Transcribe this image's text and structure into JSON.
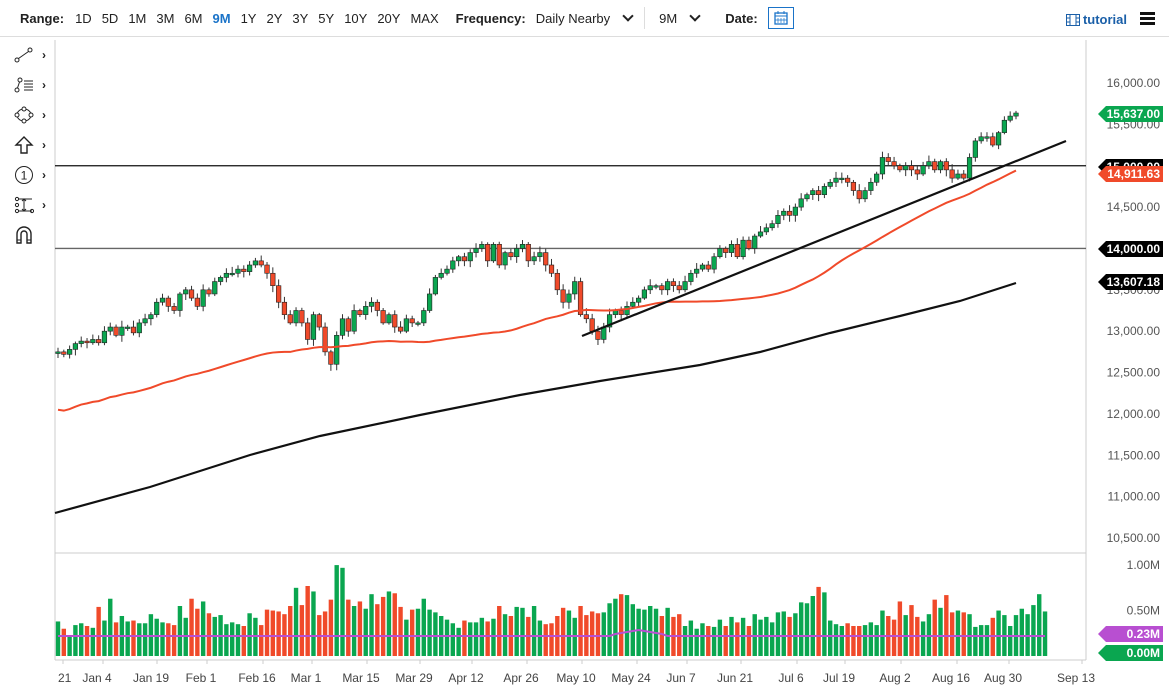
{
  "toolbar": {
    "range_label": "Range:",
    "ranges": [
      "1D",
      "5D",
      "1M",
      "3M",
      "6M",
      "9M",
      "1Y",
      "2Y",
      "3Y",
      "5Y",
      "10Y",
      "20Y",
      "MAX"
    ],
    "active_range": "9M",
    "frequency_label": "Frequency:",
    "frequency_value": "Daily Nearby",
    "period_value": "9M",
    "date_label": "Date:",
    "tutorial_label": "tutorial"
  },
  "drawing_tools": [
    {
      "name": "trendline-tool-icon"
    },
    {
      "name": "fibonacci-tool-icon"
    },
    {
      "name": "shapes-tool-icon"
    },
    {
      "name": "arrow-tool-icon"
    },
    {
      "name": "annotation-tool-icon"
    },
    {
      "name": "measure-tool-icon"
    },
    {
      "name": "magnet-tool-icon"
    }
  ],
  "colors": {
    "up": "#0aa650",
    "down": "#f04a2a",
    "ma50": "#f04a2a",
    "ma200": "#111111",
    "vol_avg": "#b84fd1",
    "active": "#1a73c8"
  },
  "chart_data": {
    "type": "candlestick",
    "title": "",
    "ylabel": "",
    "xlabel": "",
    "ylim": [
      10300,
      16300
    ],
    "y_ticks": [
      "16,000.00",
      "15,500.00",
      "15,000.00",
      "14,500.00",
      "14,000.00",
      "13,500.00",
      "13,000.00",
      "12,500.00",
      "12,000.00",
      "11,500.00",
      "11,000.00",
      "10,500.00"
    ],
    "x_ticks": [
      "21",
      "Jan 4",
      "Jan 19",
      "Feb 1",
      "Feb 16",
      "Mar 1",
      "Mar 15",
      "Mar 29",
      "Apr 12",
      "Apr 26",
      "May 10",
      "May 24",
      "Jun 7",
      "Jun 21",
      "Jul 6",
      "Jul 19",
      "Aug 2",
      "Aug 16",
      "Aug 30",
      "Sep 13"
    ],
    "price_tags": [
      {
        "label": "15,637.00",
        "value": 15637,
        "color": "#0aa650"
      },
      {
        "label": "15,000.00",
        "value": 15000,
        "color": "#000000"
      },
      {
        "label": "14,911.63",
        "value": 14911.63,
        "color": "#f04a2a"
      },
      {
        "label": "14,000.00",
        "value": 14000,
        "color": "#000000"
      },
      {
        "label": "13,607.18",
        "value": 13607.18,
        "color": "#000000"
      }
    ],
    "horizontal_lines": [
      15000,
      14000
    ],
    "trendline": {
      "from": {
        "date": "May 12",
        "value": 12950
      },
      "to": {
        "date": "Sep 10",
        "value": 15330
      }
    },
    "closes": [
      12750,
      12720,
      12780,
      12850,
      12880,
      12860,
      12900,
      12860,
      13000,
      13050,
      12950,
      13050,
      13050,
      12980,
      13100,
      13150,
      13200,
      13350,
      13400,
      13300,
      13250,
      13450,
      13500,
      13400,
      13300,
      13500,
      13450,
      13600,
      13650,
      13700,
      13700,
      13750,
      13720,
      13800,
      13850,
      13800,
      13700,
      13550,
      13350,
      13200,
      13100,
      13250,
      13100,
      12900,
      13200,
      13050,
      12750,
      12600,
      12950,
      13150,
      13000,
      13250,
      13200,
      13300,
      13350,
      13250,
      13100,
      13200,
      13050,
      13000,
      13150,
      13100,
      13100,
      13250,
      13450,
      13650,
      13700,
      13750,
      13850,
      13900,
      13850,
      13950,
      14000,
      14050,
      13850,
      14050,
      13800,
      13950,
      13900,
      14000,
      14050,
      13850,
      13900,
      13950,
      13800,
      13700,
      13500,
      13350,
      13450,
      13600,
      13200,
      13150,
      13000,
      12900,
      13050,
      13200,
      13250,
      13200,
      13300,
      13350,
      13400,
      13500,
      13550,
      13550,
      13500,
      13600,
      13550,
      13500,
      13600,
      13700,
      13750,
      13800,
      13750,
      13900,
      14000,
      13950,
      14050,
      13900,
      14100,
      14000,
      14150,
      14200,
      14250,
      14300,
      14400,
      14450,
      14400,
      14500,
      14600,
      14650,
      14700,
      14650,
      14750,
      14800,
      14850,
      14850,
      14800,
      14700,
      14600,
      14700,
      14800,
      14900,
      15100,
      15050,
      15000,
      14950,
      15000,
      14950,
      14900,
      15000,
      15050,
      14950,
      15050,
      14950,
      14850,
      14900,
      14850,
      15100,
      15300,
      15350,
      15350,
      15250,
      15400,
      15550,
      15600,
      15637
    ],
    "volumes": [
      0.38,
      0.3,
      0.22,
      0.34,
      0.36,
      0.33,
      0.31,
      0.54,
      0.39,
      0.63,
      0.37,
      0.44,
      0.38,
      0.39,
      0.36,
      0.36,
      0.46,
      0.41,
      0.37,
      0.36,
      0.34,
      0.55,
      0.42,
      0.63,
      0.52,
      0.6,
      0.47,
      0.43,
      0.45,
      0.35,
      0.37,
      0.35,
      0.33,
      0.47,
      0.42,
      0.34,
      0.51,
      0.5,
      0.49,
      0.46,
      0.55,
      0.75,
      0.56,
      0.77,
      0.71,
      0.45,
      0.49,
      0.62,
      1.0,
      0.97,
      0.62,
      0.55,
      0.6,
      0.52,
      0.68,
      0.57,
      0.65,
      0.71,
      0.69,
      0.54,
      0.4,
      0.51,
      0.52,
      0.63,
      0.51,
      0.48,
      0.44,
      0.4,
      0.36,
      0.31,
      0.39,
      0.37,
      0.37,
      0.42,
      0.38,
      0.41,
      0.55,
      0.46,
      0.44,
      0.54,
      0.53,
      0.43,
      0.55,
      0.39,
      0.35,
      0.36,
      0.44,
      0.53,
      0.5,
      0.42,
      0.55,
      0.45,
      0.49,
      0.47,
      0.48,
      0.58,
      0.63,
      0.68,
      0.67,
      0.57,
      0.52,
      0.51,
      0.55,
      0.52,
      0.44,
      0.53,
      0.43,
      0.46,
      0.33,
      0.39,
      0.3,
      0.36,
      0.33,
      0.32,
      0.4,
      0.33,
      0.43,
      0.37,
      0.42,
      0.33,
      0.46,
      0.4,
      0.43,
      0.37,
      0.48,
      0.49,
      0.43,
      0.47,
      0.59,
      0.58,
      0.66,
      0.76,
      0.7,
      0.39,
      0.35,
      0.33,
      0.36,
      0.33,
      0.33,
      0.34,
      0.37,
      0.34,
      0.5,
      0.44,
      0.4,
      0.6,
      0.45,
      0.56,
      0.43,
      0.38,
      0.46,
      0.62,
      0.53,
      0.67,
      0.48,
      0.5,
      0.48,
      0.46,
      0.32,
      0.34,
      0.34,
      0.42,
      0.5,
      0.45,
      0.33,
      0.45,
      0.52,
      0.46,
      0.56,
      0.68,
      0.49
    ],
    "volume_ylim": [
      0,
      1.1
    ],
    "volume_ticks": [
      "1.00M",
      "0.50M"
    ],
    "volume_tags": [
      {
        "label": "0.23M",
        "color": "#b84fd1"
      },
      {
        "label": "0.00M",
        "color": "#0aa650"
      }
    ]
  }
}
